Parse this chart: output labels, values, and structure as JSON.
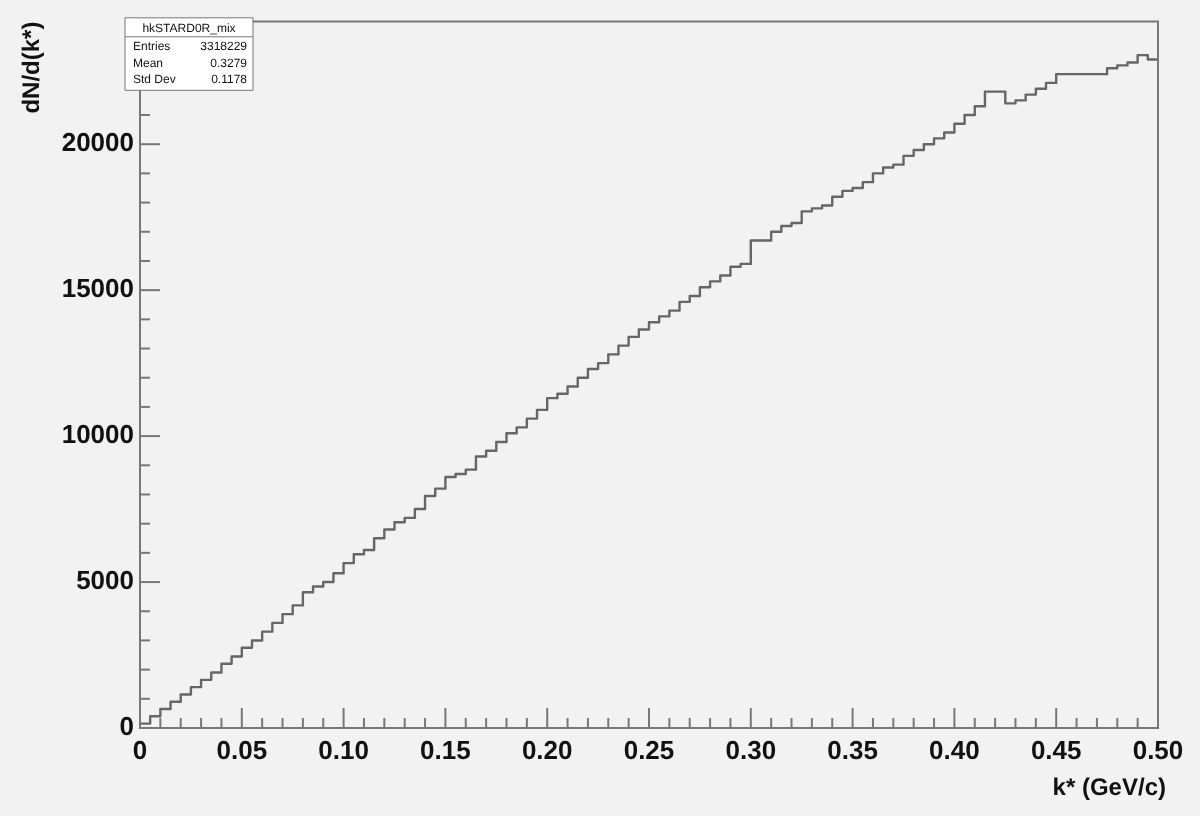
{
  "chart_data": {
    "type": "histogram",
    "title": "hkSTARD0R_mix",
    "xlabel": "k* (GeV/c)",
    "ylabel": "dN/d(k*)",
    "annotations": [
      "Entries",
      "3318229",
      "Mean",
      "0.3279",
      "Std Dev",
      "0.1178"
    ],
    "color": "#666666",
    "bins": [
      0,
      0.005,
      0.01,
      0.015,
      0.02,
      0.025,
      0.03,
      0.035,
      0.04,
      0.045,
      0.05,
      0.055,
      0.06,
      0.065,
      0.07,
      0.075,
      0.08,
      0.085,
      0.09,
      0.095,
      0.1,
      0.105,
      0.11,
      0.115,
      0.12,
      0.125,
      0.13,
      0.135,
      0.14,
      0.145,
      0.15,
      0.155,
      0.16,
      0.165,
      0.17,
      0.175,
      0.18,
      0.185,
      0.19,
      0.195,
      0.2,
      0.205,
      0.21,
      0.215,
      0.22,
      0.225,
      0.23,
      0.235,
      0.24,
      0.245,
      0.25,
      0.255,
      0.26,
      0.265,
      0.27,
      0.275,
      0.28,
      0.285,
      0.29,
      0.295,
      0.3,
      0.305,
      0.31,
      0.315,
      0.32,
      0.325,
      0.33,
      0.335,
      0.34,
      0.345,
      0.35,
      0.355,
      0.36,
      0.365,
      0.37,
      0.375,
      0.38,
      0.385,
      0.39,
      0.395,
      0.4,
      0.405,
      0.41,
      0.415,
      0.42,
      0.425,
      0.43,
      0.435,
      0.44,
      0.445,
      0.45,
      0.455,
      0.46,
      0.465,
      0.47,
      0.475,
      0.48,
      0.485,
      0.49,
      0.495,
      0.5
    ],
    "values": [
      150,
      400,
      650,
      900,
      1150,
      1400,
      1650,
      1900,
      2200,
      2450,
      2750,
      3000,
      3300,
      3600,
      3900,
      4200,
      4650,
      4850,
      5000,
      5300,
      5650,
      5950,
      6100,
      6500,
      6800,
      7050,
      7200,
      7500,
      7950,
      8200,
      8600,
      8700,
      8850,
      9300,
      9500,
      9800,
      10100,
      10300,
      10600,
      10900,
      11300,
      11450,
      11700,
      12000,
      12300,
      12500,
      12800,
      13100,
      13400,
      13650,
      13900,
      14100,
      14300,
      14600,
      14800,
      15100,
      15300,
      15500,
      15800,
      15900,
      16700,
      16700,
      17000,
      17200,
      17300,
      17700,
      17800,
      17900,
      18200,
      18400,
      18500,
      18700,
      19000,
      19200,
      19300,
      19600,
      19800,
      20000,
      20200,
      20400,
      20700,
      21000,
      21300,
      21800,
      21800,
      21400,
      21500,
      21700,
      21900,
      22100,
      22400,
      22400,
      22400,
      22400,
      22400,
      22600,
      22700,
      22800,
      23050,
      22900
    ],
    "xlim": [
      0,
      0.5
    ],
    "xticks": [
      0,
      {
        "value": 0.01,
        "label": null
      },
      {
        "value": 0.02,
        "label": null
      },
      {
        "value": 0.03,
        "label": null
      },
      {
        "value": 0.04,
        "label": null
      },
      {
        "value": 0.05,
        "label": "0.05"
      },
      {
        "value": 0.06,
        "label": null
      },
      {
        "value": 0.07,
        "label": null
      },
      {
        "value": 0.08,
        "label": null
      },
      {
        "value": 0.09,
        "label": null
      },
      {
        "value": 0.1,
        "label": "0.10"
      },
      {
        "value": 0.11,
        "label": null
      },
      {
        "value": 0.12,
        "label": null
      },
      {
        "value": 0.13,
        "label": null
      },
      {
        "value": 0.14,
        "label": null
      },
      0.15,
      {
        "value": 0.16,
        "label": null
      },
      {
        "value": 0.17,
        "label": null
      },
      {
        "value": 0.18,
        "label": null
      },
      {
        "value": 0.19,
        "label": null
      },
      {
        "value": 0.2,
        "label": "0.20"
      },
      {
        "value": 0.21,
        "label": null
      },
      {
        "value": 0.22,
        "label": null
      },
      {
        "value": 0.23,
        "label": null
      },
      {
        "value": 0.24,
        "label": null
      },
      0.25,
      {
        "value": 0.26,
        "label": null
      },
      {
        "value": 0.27,
        "label": null
      },
      {
        "value": 0.28,
        "label": null
      },
      {
        "value": 0.29,
        "label": null
      },
      {
        "value": 0.3,
        "label": "0.30"
      },
      {
        "value": 0.31,
        "label": null
      },
      {
        "value": 0.32,
        "label": null
      },
      {
        "value": 0.33,
        "label": null
      },
      {
        "value": 0.34,
        "label": null
      },
      0.35,
      {
        "value": 0.36,
        "label": null
      },
      {
        "value": 0.37,
        "label": null
      },
      {
        "value": 0.38,
        "label": null
      },
      {
        "value": 0.39,
        "label": null
      },
      {
        "value": 0.4,
        "label": "0.40"
      },
      {
        "value": 0.41,
        "label": null
      },
      {
        "value": 0.42,
        "label": null
      },
      {
        "value": 0.43,
        "label": null
      },
      {
        "value": 0.44,
        "label": null
      },
      0.45,
      {
        "value": 0.46,
        "label": null
      },
      {
        "value": 0.47,
        "label": null
      },
      {
        "value": 0.48,
        "label": null
      },
      {
        "value": 0.49,
        "label": null
      },
      {
        "value": 0.5,
        "label": "0.50"
      }
    ],
    "ylim": [
      0,
      24200
    ],
    "yticks": [
      0,
      {
        "value": 1000,
        "label": null
      },
      {
        "value": 2000,
        "label": null
      },
      {
        "value": 3000,
        "label": null
      },
      {
        "value": 4000,
        "label": null
      },
      5000,
      {
        "value": 6000,
        "label": null
      },
      {
        "value": 7000,
        "label": null
      },
      {
        "value": 8000,
        "label": null
      },
      {
        "value": 9000,
        "label": null
      },
      10000,
      {
        "value": 11000,
        "label": null
      },
      {
        "value": 12000,
        "label": null
      },
      {
        "value": 13000,
        "label": null
      },
      {
        "value": 14000,
        "label": null
      },
      15000,
      {
        "value": 16000,
        "label": null
      },
      {
        "value": 17000,
        "label": null
      },
      {
        "value": 18000,
        "label": null
      },
      {
        "value": 19000,
        "label": null
      },
      20000,
      {
        "value": 21000,
        "label": null
      },
      {
        "value": 22000,
        "label": null
      },
      {
        "value": 23000,
        "label": null
      },
      {
        "value": 24000,
        "label": null
      }
    ],
    "grid": false,
    "legend": false
  }
}
